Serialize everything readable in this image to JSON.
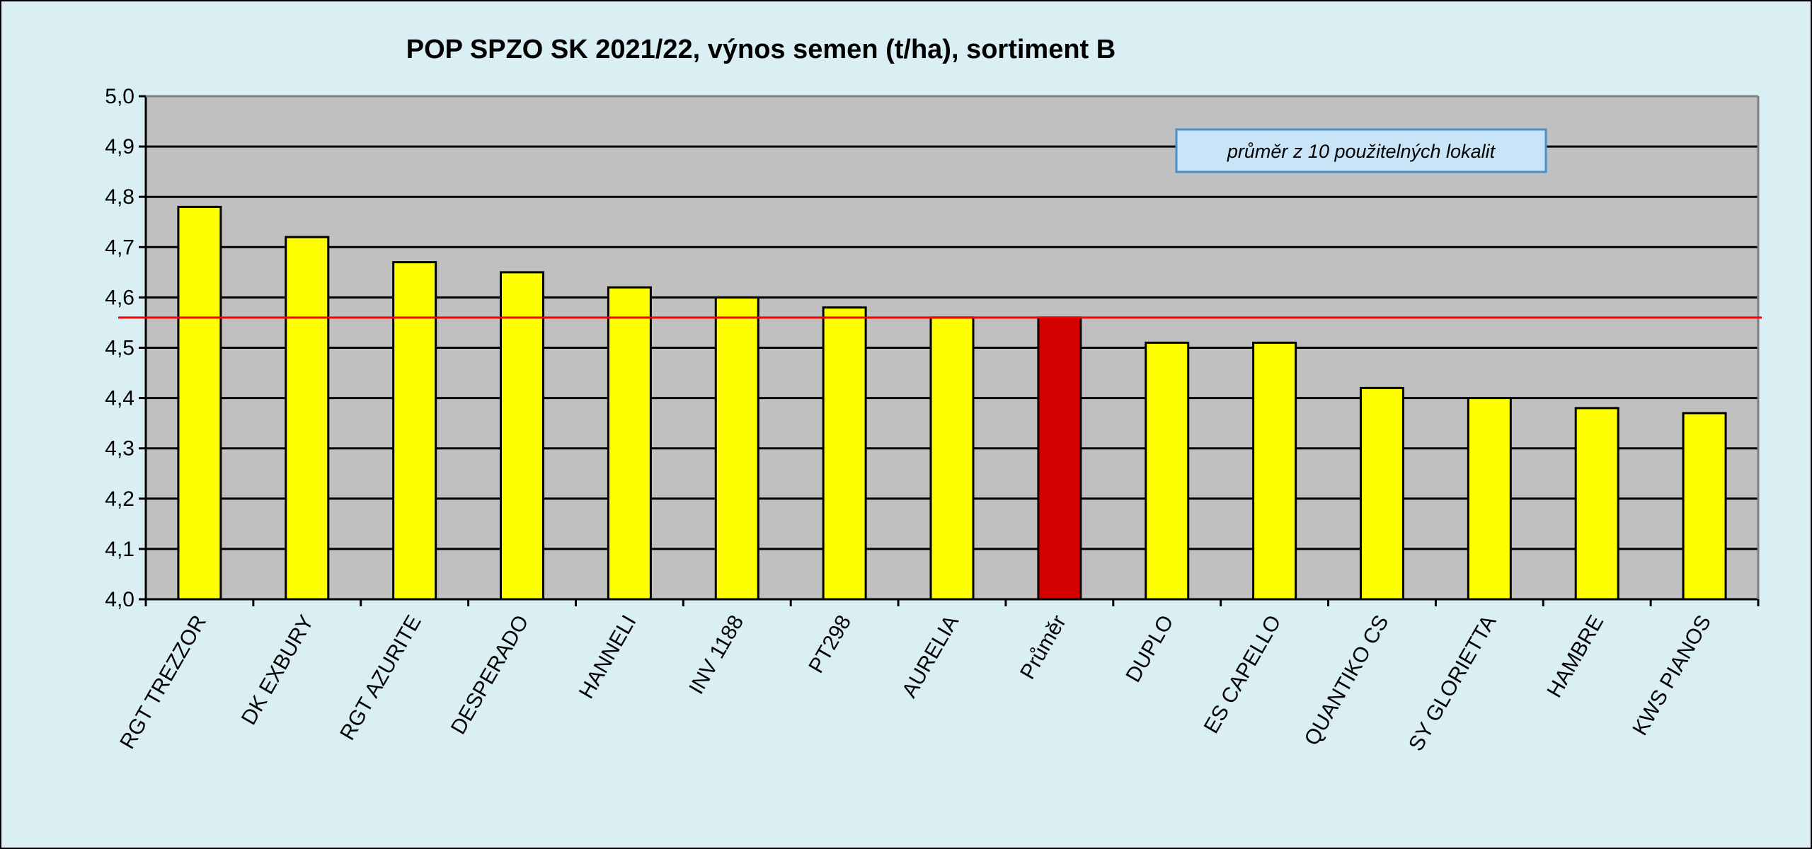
{
  "chart_data": {
    "type": "bar",
    "title": "POP SPZO SK 2021/22, výnos semen (t/ha), sortiment B",
    "xlabel": "",
    "ylabel": "",
    "ylim": [
      4.0,
      5.0
    ],
    "y_ticks": [
      "4,0",
      "4,1",
      "4,2",
      "4,3",
      "4,4",
      "4,5",
      "4,6",
      "4,7",
      "4,8",
      "4,9",
      "5,0"
    ],
    "grid": true,
    "categories": [
      "RGT TREZZOR",
      "DK EXBURY",
      "RGT AZURITE",
      "DESPERADO",
      "HANNELI",
      "INV 1188",
      "PT298",
      "AURELIA",
      "Průměr",
      "DUPLO",
      "ES CAPELLO",
      "QUANTIKO CS",
      "SY GLORIETTA",
      "HAMBRE",
      "KWS PIANOS"
    ],
    "values": [
      4.78,
      4.72,
      4.67,
      4.65,
      4.62,
      4.6,
      4.58,
      4.56,
      4.56,
      4.51,
      4.51,
      4.42,
      4.4,
      4.38,
      4.37
    ],
    "highlight_category": "Průměr",
    "average_line": 4.56,
    "annotation": "průměr z 10 použitelných lokalit"
  },
  "colors": {
    "bar": "#ffff00",
    "bar_highlight": "#d40000",
    "bar_outline": "#000000",
    "plot_bg": "#c0c0c0",
    "chart_bg": "#d9eff3",
    "average_line": "#ff0000",
    "note_bg": "#c9e3f7",
    "note_border": "#4a8fc9"
  }
}
